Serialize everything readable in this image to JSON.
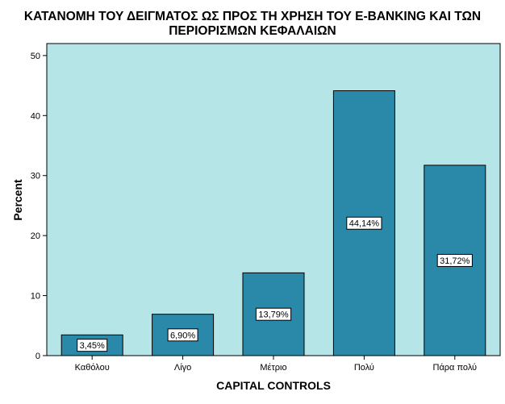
{
  "chart_data": {
    "type": "bar",
    "title": "ΚΑΤΑΝΟΜΗ ΤΟΥ ΔΕΙΓΜΑΤΟΣ ΩΣ ΠΡΟΣ ΤΗ ΧΡΗΣΗ ΤΟΥ E-BANKING ΚΑΙ ΤΩΝ ΠΕΡΙΟΡΙΣΜΩΝ ΚΕΦΑΛΑΙΩΝ",
    "title_lines": [
      "ΚΑΤΑΝΟΜΗ ΤΟΥ ΔΕΙΓΜΑΤΟΣ ΩΣ ΠΡΟΣ ΤΗ ΧΡΗΣΗ ΤΟΥ E-BANKING ΚΑΙ ΤΩΝ",
      "ΠΕΡΙΟΡΙΣΜΩΝ ΚΕΦΑΛΑΙΩΝ"
    ],
    "xlabel": "CAPITAL CONTROLS",
    "ylabel": "Percent",
    "categories": [
      "Καθόλου",
      "Λίγο",
      "Μέτριο",
      "Πολύ",
      "Πάρα πολύ"
    ],
    "values": [
      3.45,
      6.9,
      13.79,
      44.14,
      31.72
    ],
    "data_labels": [
      "3,45%",
      "6,90%",
      "13,79%",
      "44,14%",
      "31,72%"
    ],
    "ylim": [
      0,
      52
    ],
    "yticks": [
      0,
      10,
      20,
      30,
      40,
      50
    ],
    "grid": false,
    "colors": {
      "plot_background": "#b5e5e6",
      "bar": "#2a88a8",
      "bar_border": "#000000"
    }
  }
}
